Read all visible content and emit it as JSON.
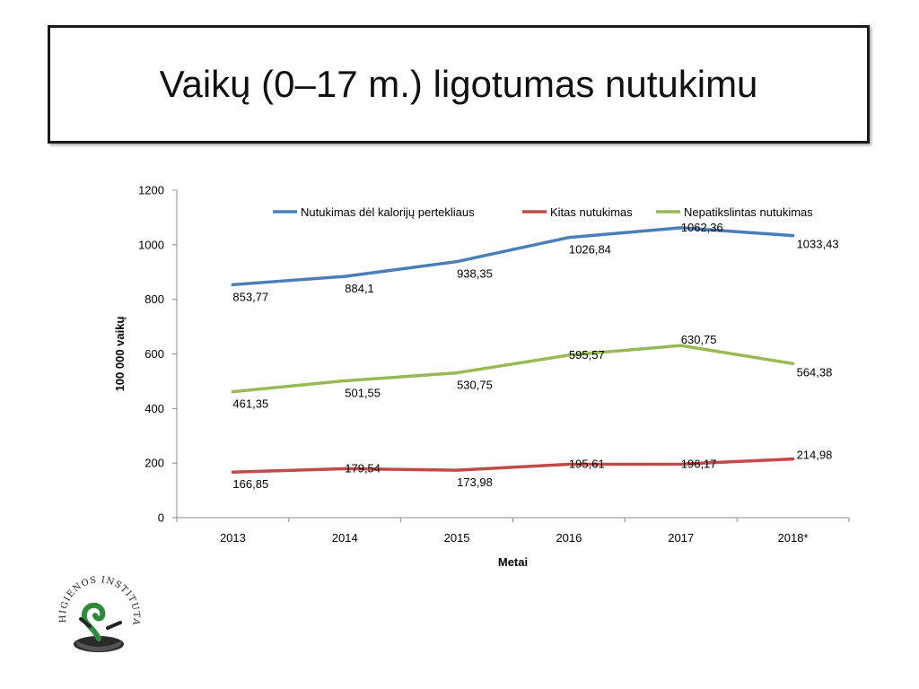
{
  "slide": {
    "title": "Vaikų (0–17 m.) ligotumas nutukimu"
  },
  "logo": {
    "text": "HIGIENOS INSTITUTAS"
  },
  "colors": {
    "series_1": "#4a7ebb",
    "series_2": "#be4b48",
    "series_3": "#98b954",
    "axis": "#888888",
    "text": "#000000"
  },
  "chart_data": {
    "type": "line",
    "title": "",
    "xlabel": "Metai",
    "ylabel": "100 000 vaikų",
    "categories": [
      "2013",
      "2014",
      "2015",
      "2016",
      "2017",
      "2018*"
    ],
    "ylim": [
      0,
      1200
    ],
    "yticks": [
      "0",
      "200",
      "400",
      "600",
      "800",
      "1000",
      "1200"
    ],
    "grid": false,
    "legend": "top",
    "series": [
      {
        "name": "Nutukimas dėl kalorijų pertekliaus",
        "values": [
          853.77,
          884.1,
          938.35,
          1026.84,
          1062.36,
          1033.43
        ],
        "labels": [
          "853,77",
          "884,1",
          "938,35",
          "1026,84",
          "1062,36",
          "1033,43"
        ]
      },
      {
        "name": "Kitas nutukimas",
        "values": [
          166.85,
          179.54,
          173.98,
          195.61,
          196.17,
          214.98
        ],
        "labels": [
          "166,85",
          "179,54",
          "173,98",
          "195,61",
          "196,17",
          "214,98"
        ]
      },
      {
        "name": "Nepatikslintas nutukimas",
        "values": [
          461.35,
          501.55,
          530.75,
          595.57,
          630.75,
          564.38
        ],
        "labels": [
          "461,35",
          "501,55",
          "530,75",
          "595,57",
          "630,75",
          "564,38"
        ]
      }
    ]
  }
}
